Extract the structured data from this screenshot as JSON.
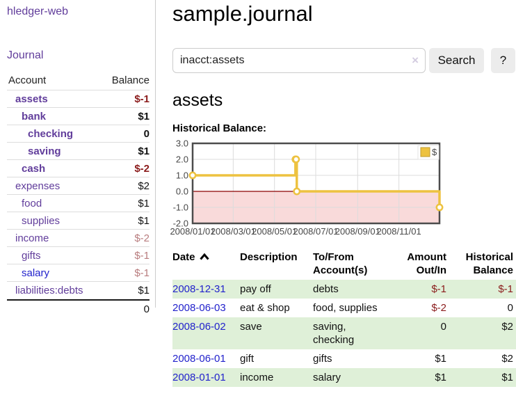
{
  "sidebar": {
    "brand": "hledger-web",
    "journal_link": "Journal",
    "columns": {
      "account": "Account",
      "balance": "Balance"
    },
    "accounts": [
      {
        "name": "assets",
        "level": 0,
        "balance": "$-1",
        "bold": true,
        "neg": "strong"
      },
      {
        "name": "bank",
        "level": 1,
        "balance": "$1",
        "bold": true
      },
      {
        "name": "checking",
        "level": 2,
        "balance": "0",
        "bold": true
      },
      {
        "name": "saving",
        "level": 2,
        "balance": "$1",
        "bold": true
      },
      {
        "name": "cash",
        "level": 1,
        "balance": "$-2",
        "bold": true,
        "neg": "strong"
      },
      {
        "name": "expenses",
        "level": 0,
        "balance": "$2"
      },
      {
        "name": "food",
        "level": 1,
        "balance": "$1"
      },
      {
        "name": "supplies",
        "level": 1,
        "balance": "$1"
      },
      {
        "name": "income",
        "level": 0,
        "balance": "$-2",
        "neg": "faded"
      },
      {
        "name": "gifts",
        "level": 1,
        "balance": "$-1",
        "neg": "faded"
      },
      {
        "name": "salary",
        "level": 1,
        "balance": "$-1",
        "neg": "faded",
        "link_color": "blue"
      },
      {
        "name": "liabilities:debts",
        "level": 0,
        "balance": "$1"
      }
    ],
    "total": "0"
  },
  "main": {
    "title": "sample.journal",
    "search": {
      "value": "inacct:assets",
      "clear_icon": "×",
      "button_label": "Search",
      "help_label": "?"
    },
    "account_heading": "assets",
    "chart_label": "Historical Balance:"
  },
  "chart_data": {
    "type": "line",
    "steps": true,
    "title": "Historical Balance",
    "series": [
      {
        "name": "$",
        "color": "#edc240",
        "points": [
          [
            "2008-01-01",
            1
          ],
          [
            "2008-06-01",
            2
          ],
          [
            "2008-06-02",
            2
          ],
          [
            "2008-06-03",
            0
          ],
          [
            "2008-12-31",
            -1
          ]
        ]
      }
    ],
    "x_range": [
      "2008-01-01",
      "2008-12-31"
    ],
    "ylim": [
      -2,
      3
    ],
    "y_ticks": [
      3,
      2,
      1,
      0,
      -1,
      -2
    ],
    "x_ticks": [
      {
        "value": "2008-01-01",
        "label": "2008/01/01"
      },
      {
        "value": "2008-03-01",
        "label": "2008/03/01"
      },
      {
        "value": "2008-05-01",
        "label": "2008/05/01"
      },
      {
        "value": "2008-07-01",
        "label": "2008/07/01"
      },
      {
        "value": "2008-09-01",
        "label": "2008/09/01"
      },
      {
        "value": "2008-11-01",
        "label": "2008/11/01"
      }
    ],
    "grid": true,
    "legend": {
      "position": "top-right",
      "label": "$"
    },
    "zero_line_color": "#8b0000",
    "negative_zone_color": "#f9dada"
  },
  "register": {
    "columns": {
      "date": "Date",
      "description": "Description",
      "accounts": "To/From Account(s)",
      "amount": "Amount Out/In",
      "balance": "Historical Balance"
    },
    "rows": [
      {
        "date": "2008-12-31",
        "description": "pay off",
        "accounts": "debts",
        "amount": "$-1",
        "amount_neg": true,
        "balance": "$-1",
        "balance_neg": true
      },
      {
        "date": "2008-06-03",
        "description": "eat & shop",
        "accounts": "food, supplies",
        "amount": "$-2",
        "amount_neg": true,
        "balance": "0",
        "balance_neg": false
      },
      {
        "date": "2008-06-02",
        "description": "save",
        "accounts": "saving, checking",
        "amount": "0",
        "amount_neg": false,
        "balance": "$2",
        "balance_neg": false
      },
      {
        "date": "2008-06-01",
        "description": "gift",
        "accounts": "gifts",
        "amount": "$1",
        "amount_neg": false,
        "balance": "$2",
        "balance_neg": false
      },
      {
        "date": "2008-01-01",
        "description": "income",
        "accounts": "salary",
        "amount": "$1",
        "amount_neg": false,
        "balance": "$1",
        "balance_neg": false
      }
    ]
  },
  "colors": {
    "link_purple": "#613d9b",
    "link_blue": "#2222cc",
    "negative_strong": "#8b1c1c",
    "negative_faded": "#b87c7e",
    "row_stripe_green": "#dff0d8",
    "series_yellow": "#edc240",
    "button_bg": "#ececec"
  }
}
